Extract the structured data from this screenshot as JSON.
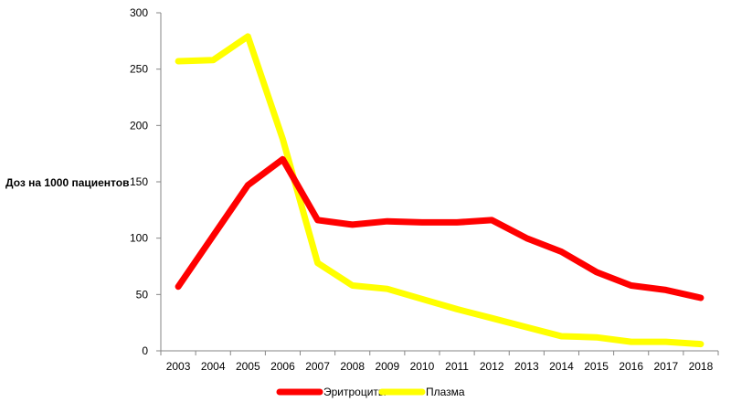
{
  "chart_data": {
    "type": "line",
    "title": "",
    "xlabel": "",
    "ylabel": "Доз на 1000 пациентов",
    "ylim": [
      0,
      300
    ],
    "yticks": [
      "0",
      "50",
      "100",
      "150",
      "200",
      "250",
      "300"
    ],
    "categories": [
      "2003",
      "2004",
      "2005",
      "2006",
      "2007",
      "2008",
      "2009",
      "2010",
      "2011",
      "2012",
      "2013",
      "2014",
      "2015",
      "2016",
      "2017",
      "2018"
    ],
    "grid": false,
    "legend_position": "bottom",
    "series": [
      {
        "name": "Эритроциты",
        "color": "#ff0000",
        "values": [
          57,
          102,
          147,
          170,
          116,
          112,
          115,
          114,
          114,
          116,
          100,
          88,
          70,
          58,
          54,
          47
        ]
      },
      {
        "name": "Плазма",
        "color": "#ffff00",
        "values": [
          257,
          258,
          279,
          188,
          78,
          58,
          55,
          46,
          37,
          29,
          21,
          13,
          12,
          8,
          8,
          6
        ]
      }
    ]
  }
}
